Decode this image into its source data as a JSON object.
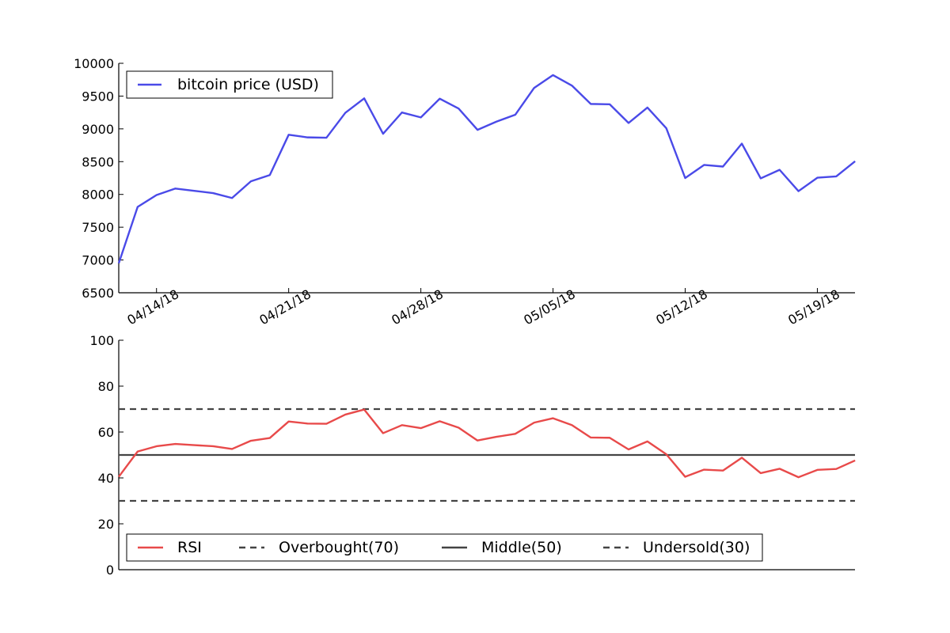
{
  "chart_data": [
    {
      "type": "line",
      "title": "",
      "xlabel": "",
      "ylabel": "",
      "ylim": [
        6500,
        10000
      ],
      "yticks": [
        "6500",
        "7000",
        "7500",
        "8000",
        "8500",
        "9000",
        "9500",
        "10000"
      ],
      "xtick_labels": [
        "04/14/18",
        "04/21/18",
        "04/28/18",
        "05/05/18",
        "05/12/18",
        "05/19/18"
      ],
      "x": [
        "04/12/18",
        "04/13/18",
        "04/14/18",
        "04/15/18",
        "04/16/18",
        "04/17/18",
        "04/18/18",
        "04/19/18",
        "04/20/18",
        "04/21/18",
        "04/22/18",
        "04/23/18",
        "04/24/18",
        "04/25/18",
        "04/26/18",
        "04/27/18",
        "04/28/18",
        "04/29/18",
        "04/30/18",
        "05/01/18",
        "05/02/18",
        "05/03/18",
        "05/04/18",
        "05/05/18",
        "05/06/18",
        "05/07/18",
        "05/08/18",
        "05/09/18",
        "05/10/18",
        "05/11/18",
        "05/12/18",
        "05/13/18",
        "05/14/18",
        "05/15/18",
        "05/16/18",
        "05/17/18",
        "05/18/18",
        "05/19/18",
        "05/20/18",
        "05/21/18"
      ],
      "series": [
        {
          "name": "bitcoin price (USD)",
          "color": "#4a4ae8",
          "values": [
            6950,
            7810,
            7990,
            8090,
            8055,
            8020,
            7945,
            8200,
            8295,
            8910,
            8870,
            8865,
            9245,
            9465,
            8925,
            9250,
            9175,
            9460,
            9310,
            8985,
            9110,
            9215,
            9625,
            9820,
            9660,
            9380,
            9375,
            9090,
            9325,
            9010,
            8250,
            8450,
            8425,
            8775,
            8245,
            8375,
            8050,
            8255,
            8275,
            8505
          ]
        }
      ],
      "legend": "top-left"
    },
    {
      "type": "line",
      "title": "",
      "xlabel": "",
      "ylabel": "",
      "ylim": [
        0,
        100
      ],
      "yticks": [
        "0",
        "20",
        "40",
        "60",
        "80",
        "100"
      ],
      "series": [
        {
          "name": "RSI",
          "color": "#e84a4a",
          "values": [
            40.5,
            51.5,
            53.8,
            54.8,
            54.3,
            53.8,
            52.6,
            56.2,
            57.4,
            64.6,
            63.7,
            63.6,
            67.6,
            69.8,
            59.5,
            63.0,
            61.7,
            64.7,
            61.9,
            56.3,
            57.9,
            59.2,
            64.1,
            66.0,
            63.0,
            57.6,
            57.5,
            52.4,
            55.9,
            50.3,
            40.5,
            43.6,
            43.2,
            48.8,
            42.1,
            44.0,
            40.3,
            43.5,
            43.9,
            47.6
          ]
        }
      ],
      "reference_lines": [
        {
          "name": "Overbought(70)",
          "value": 70,
          "style": "dashed",
          "color": "#444444"
        },
        {
          "name": "Middle(50)",
          "value": 50,
          "style": "solid",
          "color": "#444444"
        },
        {
          "name": "Undersold(30)",
          "value": 30,
          "style": "dashed",
          "color": "#444444"
        }
      ],
      "legend": "bottom-left"
    }
  ]
}
